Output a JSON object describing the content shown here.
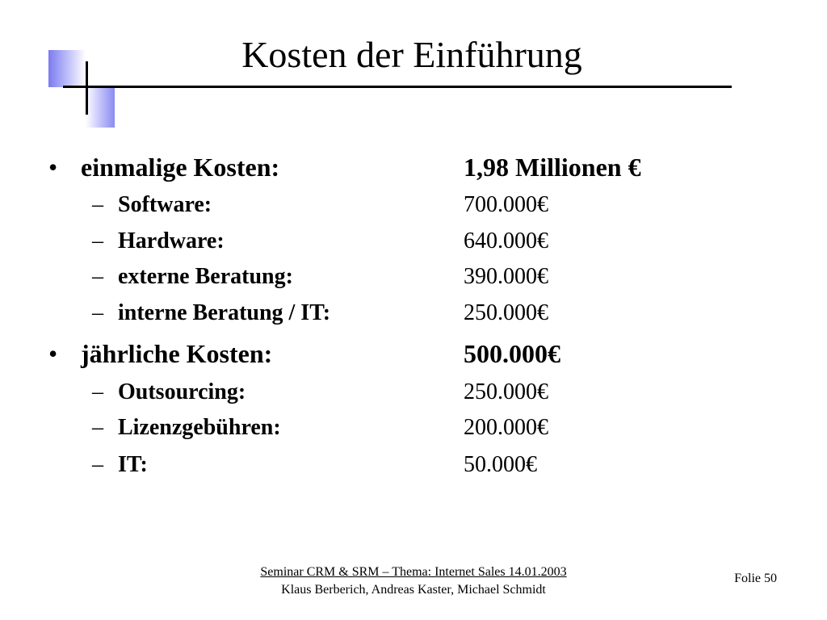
{
  "slide": {
    "title": "Kosten der Einführung",
    "sections": [
      {
        "bullet": "•",
        "label": "einmalige Kosten:",
        "value": "1,98 Millionen €",
        "items": [
          {
            "dash": "–",
            "label": "Software:",
            "value": "700.000€"
          },
          {
            "dash": "–",
            "label": "Hardware:",
            "value": "640.000€"
          },
          {
            "dash": "–",
            "label": "externe Beratung:",
            "value": "390.000€"
          },
          {
            "dash": "–",
            "label": "interne Beratung / IT:",
            "value": "250.000€"
          }
        ]
      },
      {
        "bullet": "•",
        "label": "jährliche Kosten:",
        "value": "500.000€",
        "items": [
          {
            "dash": "–",
            "label": "Outsourcing:",
            "value": "250.000€"
          },
          {
            "dash": "–",
            "label": "Lizenzgebühren:",
            "value": "200.000€"
          },
          {
            "dash": "–",
            "label": "IT:",
            "value": "50.000€"
          }
        ]
      }
    ]
  },
  "footer": {
    "seminar": "Seminar CRM & SRM – Thema: Internet Sales 14.01.2003",
    "authors": "Klaus Berberich, Andreas Kaster, Michael Schmidt",
    "page": "Folie 50"
  },
  "colors": {
    "accent": "#7b7bf0",
    "text": "#000000",
    "background": "#ffffff"
  }
}
